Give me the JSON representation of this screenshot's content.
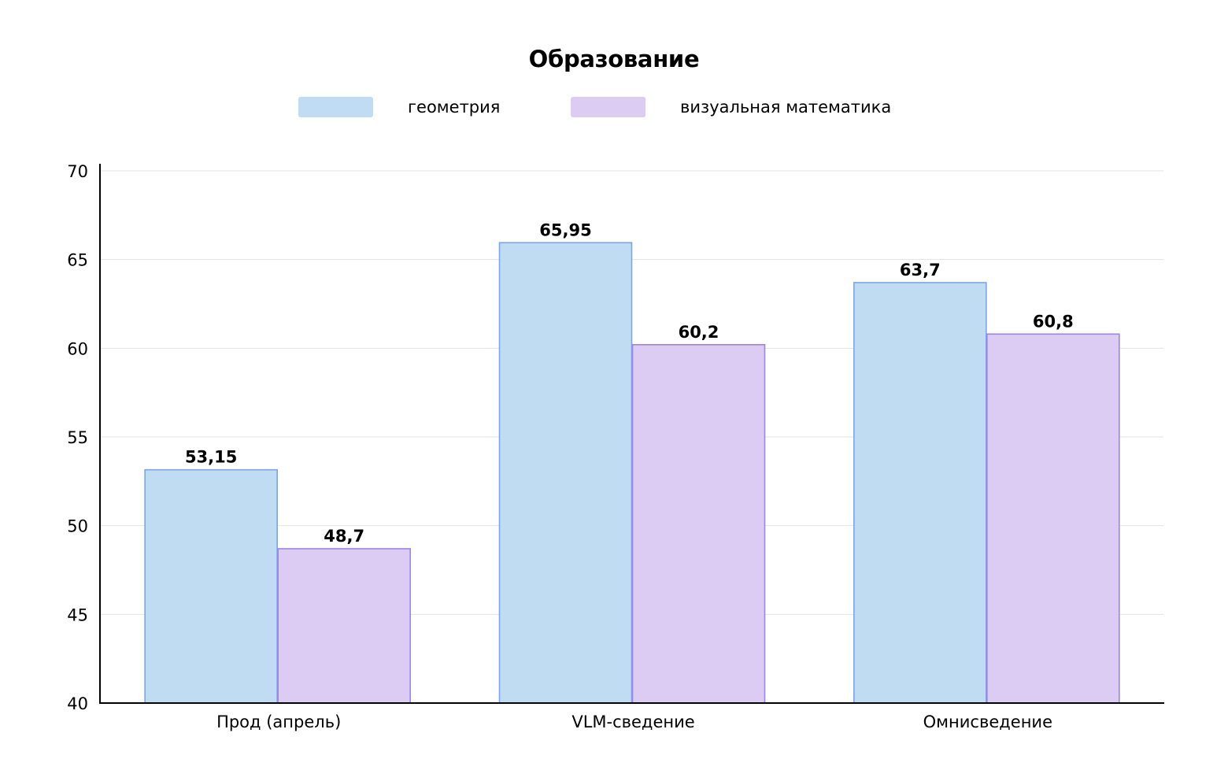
{
  "chart_data": {
    "type": "bar",
    "title": "Образование",
    "categories": [
      "Прод (апрель)",
      "VLM-сведение",
      "Омнисведение"
    ],
    "series": [
      {
        "name": "геометрия",
        "values": [
          53.15,
          65.95,
          63.7
        ],
        "labels": [
          "53,15",
          "65,95",
          "63,7"
        ],
        "fill": "#bfdcf2",
        "stroke": "#7da3ea"
      },
      {
        "name": "визуальная математика",
        "values": [
          48.7,
          60.2,
          60.8
        ],
        "labels": [
          "48,7",
          "60,2",
          "60,8"
        ],
        "fill": "#dccbf2",
        "stroke": "#9a86e4"
      }
    ],
    "yticks": [
      "40",
      "45",
      "50",
      "55",
      "60",
      "65",
      "70"
    ],
    "ylim": [
      40,
      70
    ],
    "grid": true,
    "legend": "top-center"
  }
}
